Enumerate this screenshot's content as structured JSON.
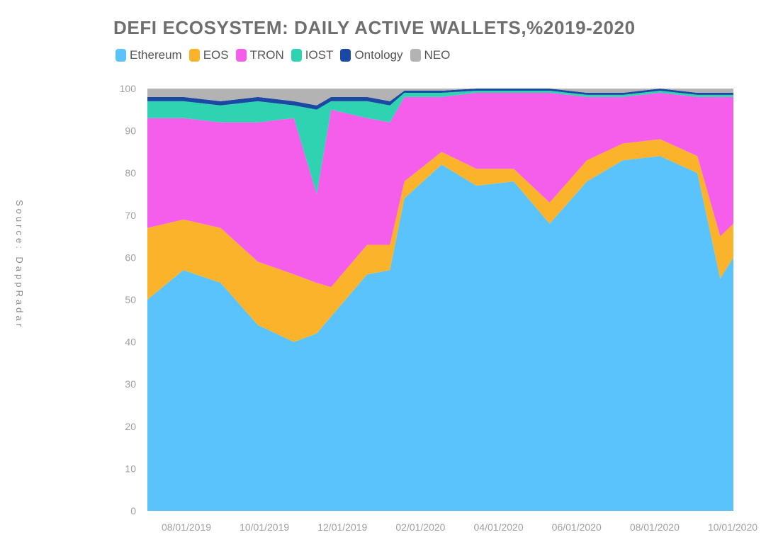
{
  "chart_data": {
    "type": "area",
    "stacked": true,
    "title": "DEFI ECOSYSTEM: DAILY ACTIVE WALLETS,%2019-2020",
    "xlabel": "",
    "ylabel": "",
    "ylim": [
      0,
      100
    ],
    "grid": false,
    "legend_position": "top-left",
    "source": "Source: DappRadar",
    "yticks": [
      "0",
      "10",
      "20",
      "30",
      "40",
      "50",
      "60",
      "70",
      "80",
      "90",
      "100"
    ],
    "xticks": [
      "08/01/2019",
      "10/01/2019",
      "12/01/2019",
      "02/01/2020",
      "04/01/2020",
      "06/01/2020",
      "08/01/2020",
      "10/01/2020"
    ],
    "x": [
      "06/01/2019",
      "07/01/2019",
      "08/01/2019",
      "09/01/2019",
      "10/01/2019",
      "10/20/2019",
      "11/01/2019",
      "12/01/2019",
      "12/20/2019",
      "01/01/2020",
      "02/01/2020",
      "03/01/2020",
      "04/01/2020",
      "05/01/2020",
      "06/01/2020",
      "07/01/2020",
      "08/01/2020",
      "09/01/2020",
      "09/20/2020",
      "10/01/2020"
    ],
    "series": [
      {
        "name": "Ethereum",
        "color": "#5bc3fb",
        "values": [
          50,
          57,
          54,
          44,
          40,
          42,
          46,
          56,
          57,
          74,
          82,
          77,
          78,
          68,
          78,
          83,
          84,
          80,
          55,
          60
        ]
      },
      {
        "name": "EOS",
        "color": "#fbb32b",
        "values": [
          17,
          12,
          13,
          15,
          16,
          12,
          7,
          7,
          6,
          4,
          3,
          4,
          3,
          5,
          5,
          4,
          4,
          4,
          10,
          8
        ]
      },
      {
        "name": "TRON",
        "color": "#f55eea",
        "values": [
          26,
          24,
          25,
          33,
          37,
          21,
          42,
          30,
          29,
          20,
          13,
          18,
          18,
          26,
          15,
          11,
          11,
          14,
          33,
          30
        ]
      },
      {
        "name": "IOST",
        "color": "#2fd3b2",
        "values": [
          4,
          4,
          4,
          5,
          3,
          20,
          2,
          4,
          4,
          1,
          1,
          0.5,
          0.5,
          0.5,
          0.5,
          0.5,
          0.5,
          0.5,
          0.5,
          0.5
        ]
      },
      {
        "name": "Ontology",
        "color": "#1a49a3",
        "values": [
          1,
          1,
          1,
          1,
          1,
          1,
          1,
          1,
          1,
          0.5,
          0.5,
          0.5,
          0.5,
          0.5,
          0.5,
          0.5,
          0.5,
          0.5,
          0.5,
          0.5
        ]
      },
      {
        "name": "NEO",
        "color": "#b3b3b3",
        "values": [
          2,
          2,
          3,
          2,
          3,
          4,
          2,
          2,
          3,
          0.5,
          0.5,
          0,
          0,
          0,
          1,
          1,
          0,
          1,
          1,
          1
        ]
      }
    ]
  }
}
